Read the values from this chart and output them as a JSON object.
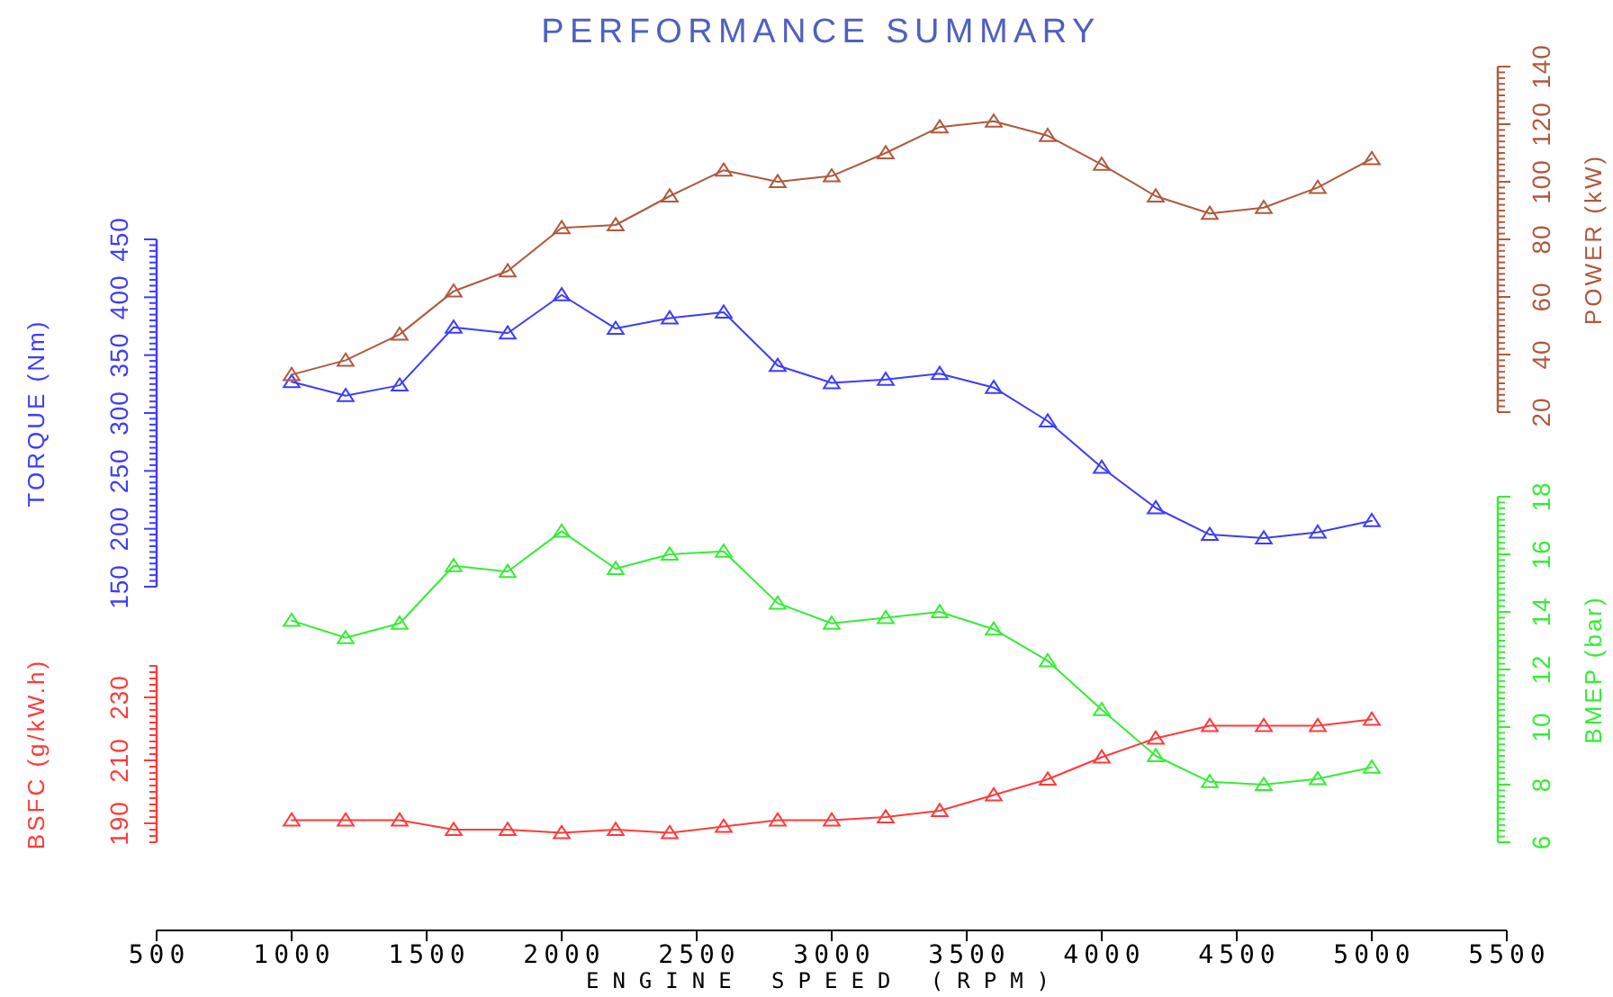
{
  "chart_data": [
    {
      "type": "line",
      "title": "PERFORMANCE SUMMARY",
      "ylabel": "TORQUE (Nm)",
      "marker": "triangle",
      "tick_labels": "y",
      "x": [
        1000,
        1200,
        1400,
        1600,
        1800,
        2000,
        2200,
        2400,
        2600,
        2800,
        3000,
        3200,
        3400,
        3600,
        3800,
        4000,
        4200,
        4400,
        4600,
        4800,
        5000
      ],
      "xlim": [
        500,
        5500
      ],
      "ylim": [
        150,
        450
      ],
      "yticks": [
        150,
        {
          "value": 155,
          "label": null
        },
        {
          "value": 160,
          "label": null
        },
        {
          "value": 165,
          "label": null
        },
        {
          "value": 170,
          "label": null
        },
        {
          "value": 175,
          "label": null
        },
        {
          "value": 180,
          "label": null
        },
        {
          "value": 185,
          "label": null
        },
        {
          "value": 190,
          "label": null
        },
        {
          "value": 195,
          "label": null
        },
        200,
        {
          "value": 205,
          "label": null
        },
        {
          "value": 210,
          "label": null
        },
        {
          "value": 215,
          "label": null
        },
        {
          "value": 220,
          "label": null
        },
        {
          "value": 225,
          "label": null
        },
        {
          "value": 230,
          "label": null
        },
        {
          "value": 235,
          "label": null
        },
        {
          "value": 240,
          "label": null
        },
        {
          "value": 245,
          "label": null
        },
        250,
        {
          "value": 255,
          "label": null
        },
        {
          "value": 260,
          "label": null
        },
        {
          "value": 265,
          "label": null
        },
        {
          "value": 270,
          "label": null
        },
        {
          "value": 275,
          "label": null
        },
        {
          "value": 280,
          "label": null
        },
        {
          "value": 285,
          "label": null
        },
        {
          "value": 290,
          "label": null
        },
        {
          "value": 295,
          "label": null
        },
        300,
        {
          "value": 305,
          "label": null
        },
        {
          "value": 310,
          "label": null
        },
        {
          "value": 315,
          "label": null
        },
        {
          "value": 320,
          "label": null
        },
        {
          "value": 325,
          "label": null
        },
        {
          "value": 330,
          "label": null
        },
        {
          "value": 335,
          "label": null
        },
        {
          "value": 340,
          "label": null
        },
        {
          "value": 345,
          "label": null
        },
        350,
        {
          "value": 355,
          "label": null
        },
        {
          "value": 360,
          "label": null
        },
        {
          "value": 365,
          "label": null
        },
        {
          "value": 370,
          "label": null
        },
        {
          "value": 375,
          "label": null
        },
        {
          "value": 380,
          "label": null
        },
        {
          "value": 385,
          "label": null
        },
        {
          "value": 390,
          "label": null
        },
        {
          "value": 395,
          "label": null
        },
        400,
        {
          "value": 405,
          "label": null
        },
        {
          "value": 410,
          "label": null
        },
        {
          "value": 415,
          "label": null
        },
        {
          "value": 420,
          "label": null
        },
        {
          "value": 425,
          "label": null
        },
        {
          "value": 430,
          "label": null
        },
        {
          "value": 435,
          "label": null
        },
        {
          "value": 440,
          "label": null
        },
        {
          "value": 445,
          "label": null
        },
        450
      ],
      "series": [
        {
          "color": "#3c3cff",
          "values": [
            327,
            315,
            324,
            374,
            369,
            402,
            373,
            382,
            387,
            341,
            326,
            329,
            334,
            322,
            293,
            253,
            218,
            195,
            192,
            197,
            207
          ]
        }
      ]
    },
    {
      "type": "line",
      "ylabel": "POWER (kW)",
      "marker": "triangle",
      "tick_labels": "y",
      "x": [
        1000,
        1200,
        1400,
        1600,
        1800,
        2000,
        2200,
        2400,
        2600,
        2800,
        3000,
        3200,
        3400,
        3600,
        3800,
        4000,
        4200,
        4400,
        4600,
        4800,
        5000
      ],
      "xlim": [
        500,
        5500
      ],
      "ylim": [
        20,
        140
      ],
      "yticks": [
        20,
        {
          "value": 22,
          "label": null
        },
        {
          "value": 24,
          "label": null
        },
        {
          "value": 26,
          "label": null
        },
        {
          "value": 28,
          "label": null
        },
        {
          "value": 30,
          "label": null
        },
        {
          "value": 32,
          "label": null
        },
        {
          "value": 34,
          "label": null
        },
        {
          "value": 36,
          "label": null
        },
        {
          "value": 38,
          "label": null
        },
        40,
        {
          "value": 42,
          "label": null
        },
        {
          "value": 44,
          "label": null
        },
        {
          "value": 46,
          "label": null
        },
        {
          "value": 48,
          "label": null
        },
        {
          "value": 50,
          "label": null
        },
        {
          "value": 52,
          "label": null
        },
        {
          "value": 54,
          "label": null
        },
        {
          "value": 56,
          "label": null
        },
        {
          "value": 58,
          "label": null
        },
        60,
        {
          "value": 62,
          "label": null
        },
        {
          "value": 64,
          "label": null
        },
        {
          "value": 66,
          "label": null
        },
        {
          "value": 68,
          "label": null
        },
        {
          "value": 70,
          "label": null
        },
        {
          "value": 72,
          "label": null
        },
        {
          "value": 74,
          "label": null
        },
        {
          "value": 76,
          "label": null
        },
        {
          "value": 78,
          "label": null
        },
        80,
        {
          "value": 82,
          "label": null
        },
        {
          "value": 84,
          "label": null
        },
        {
          "value": 86,
          "label": null
        },
        {
          "value": 88,
          "label": null
        },
        {
          "value": 90,
          "label": null
        },
        {
          "value": 92,
          "label": null
        },
        {
          "value": 94,
          "label": null
        },
        {
          "value": 96,
          "label": null
        },
        {
          "value": 98,
          "label": null
        },
        100,
        {
          "value": 102,
          "label": null
        },
        {
          "value": 104,
          "label": null
        },
        {
          "value": 106,
          "label": null
        },
        {
          "value": 108,
          "label": null
        },
        {
          "value": 110,
          "label": null
        },
        {
          "value": 112,
          "label": null
        },
        {
          "value": 114,
          "label": null
        },
        {
          "value": 116,
          "label": null
        },
        {
          "value": 118,
          "label": null
        },
        120,
        {
          "value": 122,
          "label": null
        },
        {
          "value": 124,
          "label": null
        },
        {
          "value": 126,
          "label": null
        },
        {
          "value": 128,
          "label": null
        },
        {
          "value": 130,
          "label": null
        },
        {
          "value": 132,
          "label": null
        },
        {
          "value": 134,
          "label": null
        },
        {
          "value": 136,
          "label": null
        },
        {
          "value": 138,
          "label": null
        },
        140
      ],
      "series": [
        {
          "color": "#b0583c",
          "values": [
            33,
            38,
            47,
            62,
            69,
            84,
            85,
            95,
            104,
            100,
            102,
            110,
            119,
            121,
            116,
            106,
            95,
            89,
            91,
            98,
            108
          ]
        }
      ]
    },
    {
      "type": "line",
      "ylabel": "BMEP (bar)",
      "marker": "triangle",
      "tick_labels": "y",
      "x": [
        1000,
        1200,
        1400,
        1600,
        1800,
        2000,
        2200,
        2400,
        2600,
        2800,
        3000,
        3200,
        3400,
        3600,
        3800,
        4000,
        4200,
        4400,
        4600,
        4800,
        5000
      ],
      "xlim": [
        500,
        5500
      ],
      "ylim": [
        6,
        18
      ],
      "yticks": [
        6,
        {
          "value": 6.2,
          "label": null
        },
        {
          "value": 6.4,
          "label": null
        },
        {
          "value": 6.6,
          "label": null
        },
        {
          "value": 6.8,
          "label": null
        },
        {
          "value": 7,
          "label": null
        },
        {
          "value": 7.2,
          "label": null
        },
        {
          "value": 7.4,
          "label": null
        },
        {
          "value": 7.6,
          "label": null
        },
        {
          "value": 7.8,
          "label": null
        },
        8,
        {
          "value": 8.2,
          "label": null
        },
        {
          "value": 8.4,
          "label": null
        },
        {
          "value": 8.6,
          "label": null
        },
        {
          "value": 8.8,
          "label": null
        },
        {
          "value": 9,
          "label": null
        },
        {
          "value": 9.2,
          "label": null
        },
        {
          "value": 9.4,
          "label": null
        },
        {
          "value": 9.6,
          "label": null
        },
        {
          "value": 9.8,
          "label": null
        },
        10,
        {
          "value": 10.2,
          "label": null
        },
        {
          "value": 10.4,
          "label": null
        },
        {
          "value": 10.6,
          "label": null
        },
        {
          "value": 10.8,
          "label": null
        },
        {
          "value": 11,
          "label": null
        },
        {
          "value": 11.2,
          "label": null
        },
        {
          "value": 11.4,
          "label": null
        },
        {
          "value": 11.6,
          "label": null
        },
        {
          "value": 11.8,
          "label": null
        },
        12,
        {
          "value": 12.2,
          "label": null
        },
        {
          "value": 12.4,
          "label": null
        },
        {
          "value": 12.6,
          "label": null
        },
        {
          "value": 12.8,
          "label": null
        },
        {
          "value": 13,
          "label": null
        },
        {
          "value": 13.2,
          "label": null
        },
        {
          "value": 13.4,
          "label": null
        },
        {
          "value": 13.6,
          "label": null
        },
        {
          "value": 13.8,
          "label": null
        },
        14,
        {
          "value": 14.2,
          "label": null
        },
        {
          "value": 14.4,
          "label": null
        },
        {
          "value": 14.6,
          "label": null
        },
        {
          "value": 14.8,
          "label": null
        },
        {
          "value": 15,
          "label": null
        },
        {
          "value": 15.2,
          "label": null
        },
        {
          "value": 15.4,
          "label": null
        },
        {
          "value": 15.6,
          "label": null
        },
        {
          "value": 15.8,
          "label": null
        },
        16,
        {
          "value": 16.2,
          "label": null
        },
        {
          "value": 16.4,
          "label": null
        },
        {
          "value": 16.6,
          "label": null
        },
        {
          "value": 16.8,
          "label": null
        },
        {
          "value": 17,
          "label": null
        },
        {
          "value": 17.2,
          "label": null
        },
        {
          "value": 17.4,
          "label": null
        },
        {
          "value": 17.6,
          "label": null
        },
        {
          "value": 17.8,
          "label": null
        },
        18
      ],
      "series": [
        {
          "color": "#33ee33",
          "values": [
            13.7,
            13.1,
            13.6,
            15.6,
            15.4,
            16.8,
            15.5,
            16.0,
            16.1,
            14.3,
            13.6,
            13.8,
            14.0,
            13.4,
            12.3,
            10.6,
            9.0,
            8.1,
            8.0,
            8.2,
            8.6
          ]
        }
      ]
    },
    {
      "type": "line",
      "xlabel": "ENGINE SPEED (RPM)",
      "ylabel": "BSFC (g/kW.h)",
      "marker": "triangle",
      "x": [
        1000,
        1200,
        1400,
        1600,
        1800,
        2000,
        2200,
        2400,
        2600,
        2800,
        3000,
        3200,
        3400,
        3600,
        3800,
        4000,
        4200,
        4400,
        4600,
        4800,
        5000
      ],
      "xlim": [
        500,
        5500
      ],
      "xticks": [
        500,
        1000,
        1500,
        2000,
        2500,
        3000,
        3500,
        4000,
        4500,
        5000,
        5500
      ],
      "ylim": [
        184,
        240
      ],
      "yticks": [
        {
          "value": 184,
          "label": null
        },
        {
          "value": 186,
          "label": null
        },
        {
          "value": 188,
          "label": null
        },
        190,
        {
          "value": 192,
          "label": null
        },
        {
          "value": 194,
          "label": null
        },
        {
          "value": 196,
          "label": null
        },
        {
          "value": 198,
          "label": null
        },
        {
          "value": 200,
          "label": null
        },
        {
          "value": 202,
          "label": null
        },
        {
          "value": 204,
          "label": null
        },
        {
          "value": 206,
          "label": null
        },
        {
          "value": 208,
          "label": null
        },
        210,
        {
          "value": 212,
          "label": null
        },
        {
          "value": 214,
          "label": null
        },
        {
          "value": 216,
          "label": null
        },
        {
          "value": 218,
          "label": null
        },
        {
          "value": 220,
          "label": null
        },
        {
          "value": 222,
          "label": null
        },
        {
          "value": 224,
          "label": null
        },
        {
          "value": 226,
          "label": null
        },
        {
          "value": 228,
          "label": null
        },
        230,
        {
          "value": 232,
          "label": null
        },
        {
          "value": 234,
          "label": null
        },
        {
          "value": 236,
          "label": null
        },
        {
          "value": 238,
          "label": null
        },
        {
          "value": 240,
          "label": null
        }
      ],
      "series": [
        {
          "color": "#ff3a3a",
          "values": [
            191,
            191,
            191,
            188,
            188,
            187,
            188,
            187,
            189,
            191,
            191,
            192,
            194,
            199,
            204,
            211,
            217,
            221,
            221,
            221,
            223
          ]
        }
      ]
    }
  ]
}
